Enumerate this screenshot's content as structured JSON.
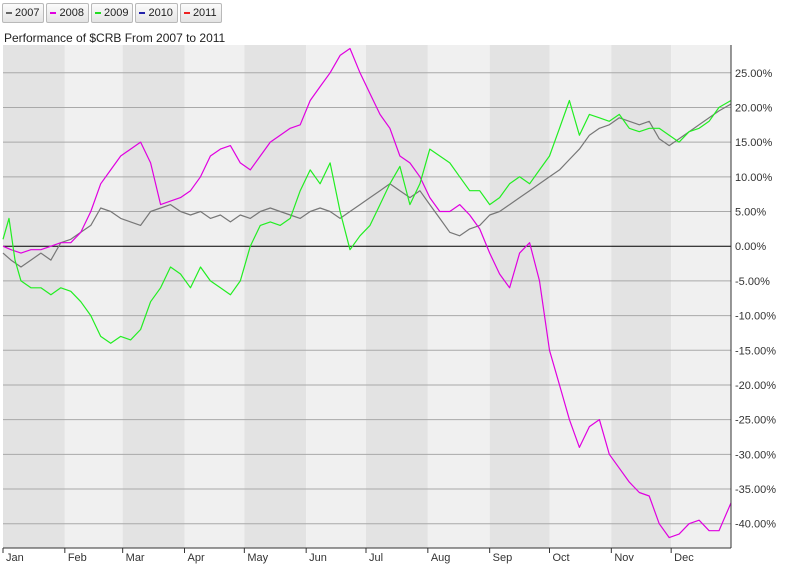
{
  "legend": [
    {
      "label": "2007",
      "color": "#666666"
    },
    {
      "label": "2008",
      "color": "#e000e0"
    },
    {
      "label": "2009",
      "color": "#22dd22"
    },
    {
      "label": "2010",
      "color": "#2222aa"
    },
    {
      "label": "2011",
      "color": "#ee2222"
    }
  ],
  "chart_data": {
    "type": "line",
    "title": "Performance of $CRB From 2007 to 2011",
    "ylabel_suffix": "%",
    "ylim": [
      -43.5,
      29
    ],
    "yticks": [
      25,
      20,
      15,
      10,
      5,
      0,
      -5,
      -10,
      -15,
      -20,
      -25,
      -30,
      -35,
      -40
    ],
    "ytick_labels": [
      "25.00%",
      "20.00%",
      "15.00%",
      "10.00%",
      "5.00%",
      "0.00%",
      "-5.00%",
      "-10.00%",
      "-15.00%",
      "-20.00%",
      "-25.00%",
      "-30.00%",
      "-35.00%",
      "-40.00%"
    ],
    "x_axis": {
      "range": [
        1,
        366
      ],
      "months": [
        "Jan",
        "Feb",
        "Mar",
        "Apr",
        "May",
        "Jun",
        "Jul",
        "Aug",
        "Sep",
        "Oct",
        "Nov",
        "Dec"
      ],
      "month_starts": [
        1,
        32,
        61,
        92,
        122,
        153,
        183,
        214,
        245,
        275,
        306,
        336
      ]
    },
    "series": [
      {
        "name": "2007",
        "color": "#777777",
        "points": [
          [
            1,
            -1
          ],
          [
            5,
            -2
          ],
          [
            10,
            -3
          ],
          [
            15,
            -2
          ],
          [
            20,
            -1
          ],
          [
            25,
            -2
          ],
          [
            30,
            0.5
          ],
          [
            35,
            1
          ],
          [
            40,
            2
          ],
          [
            45,
            3
          ],
          [
            50,
            5.5
          ],
          [
            55,
            5
          ],
          [
            60,
            4
          ],
          [
            65,
            3.5
          ],
          [
            70,
            3
          ],
          [
            75,
            5
          ],
          [
            80,
            5.5
          ],
          [
            85,
            6
          ],
          [
            90,
            5
          ],
          [
            95,
            4.5
          ],
          [
            100,
            5
          ],
          [
            105,
            4
          ],
          [
            110,
            4.5
          ],
          [
            115,
            3.5
          ],
          [
            120,
            4.5
          ],
          [
            125,
            4
          ],
          [
            130,
            5
          ],
          [
            135,
            5.5
          ],
          [
            140,
            5
          ],
          [
            145,
            4.5
          ],
          [
            150,
            4
          ],
          [
            155,
            5
          ],
          [
            160,
            5.5
          ],
          [
            165,
            5
          ],
          [
            170,
            4
          ],
          [
            175,
            5
          ],
          [
            180,
            6
          ],
          [
            185,
            7
          ],
          [
            190,
            8
          ],
          [
            195,
            9
          ],
          [
            200,
            8
          ],
          [
            205,
            7
          ],
          [
            210,
            8
          ],
          [
            215,
            6
          ],
          [
            220,
            4
          ],
          [
            225,
            2
          ],
          [
            230,
            1.5
          ],
          [
            235,
            2.5
          ],
          [
            240,
            3
          ],
          [
            245,
            4.5
          ],
          [
            250,
            5
          ],
          [
            255,
            6
          ],
          [
            260,
            7
          ],
          [
            265,
            8
          ],
          [
            270,
            9
          ],
          [
            275,
            10
          ],
          [
            280,
            11
          ],
          [
            285,
            12.5
          ],
          [
            290,
            14
          ],
          [
            295,
            16
          ],
          [
            300,
            17
          ],
          [
            305,
            17.5
          ],
          [
            310,
            18.5
          ],
          [
            315,
            18
          ],
          [
            320,
            17.5
          ],
          [
            325,
            18
          ],
          [
            330,
            15.5
          ],
          [
            335,
            14.5
          ],
          [
            340,
            15.5
          ],
          [
            345,
            16.5
          ],
          [
            350,
            17.5
          ],
          [
            355,
            18.5
          ],
          [
            360,
            19.5
          ],
          [
            366,
            20.5
          ]
        ]
      },
      {
        "name": "2008",
        "color": "#e000e0",
        "points": [
          [
            1,
            0
          ],
          [
            5,
            -0.5
          ],
          [
            10,
            -1
          ],
          [
            15,
            -0.5
          ],
          [
            20,
            -0.5
          ],
          [
            25,
            0
          ],
          [
            30,
            0.5
          ],
          [
            35,
            0.5
          ],
          [
            40,
            2
          ],
          [
            45,
            5
          ],
          [
            50,
            9
          ],
          [
            55,
            11
          ],
          [
            60,
            13
          ],
          [
            65,
            14
          ],
          [
            70,
            15
          ],
          [
            75,
            12
          ],
          [
            80,
            6
          ],
          [
            85,
            6.5
          ],
          [
            90,
            7
          ],
          [
            95,
            8
          ],
          [
            100,
            10
          ],
          [
            105,
            13
          ],
          [
            110,
            14
          ],
          [
            115,
            14.5
          ],
          [
            120,
            12
          ],
          [
            125,
            11
          ],
          [
            130,
            13
          ],
          [
            135,
            15
          ],
          [
            140,
            16
          ],
          [
            145,
            17
          ],
          [
            150,
            17.5
          ],
          [
            155,
            21
          ],
          [
            160,
            23
          ],
          [
            165,
            25
          ],
          [
            170,
            27.5
          ],
          [
            175,
            28.5
          ],
          [
            180,
            25
          ],
          [
            185,
            22
          ],
          [
            190,
            19
          ],
          [
            195,
            17
          ],
          [
            200,
            13
          ],
          [
            205,
            12
          ],
          [
            210,
            10
          ],
          [
            215,
            7
          ],
          [
            220,
            5
          ],
          [
            225,
            5
          ],
          [
            230,
            6
          ],
          [
            235,
            4.5
          ],
          [
            240,
            2.5
          ],
          [
            245,
            -1
          ],
          [
            250,
            -4
          ],
          [
            255,
            -6
          ],
          [
            260,
            -1
          ],
          [
            265,
            0.5
          ],
          [
            270,
            -5
          ],
          [
            275,
            -15
          ],
          [
            280,
            -20
          ],
          [
            285,
            -25
          ],
          [
            290,
            -29
          ],
          [
            295,
            -26
          ],
          [
            300,
            -25
          ],
          [
            305,
            -30
          ],
          [
            310,
            -32
          ],
          [
            315,
            -34
          ],
          [
            320,
            -35.5
          ],
          [
            325,
            -36
          ],
          [
            330,
            -40
          ],
          [
            335,
            -42
          ],
          [
            340,
            -41.5
          ],
          [
            345,
            -40
          ],
          [
            350,
            -39.5
          ],
          [
            355,
            -41
          ],
          [
            360,
            -41
          ],
          [
            366,
            -37
          ]
        ]
      },
      {
        "name": "2009",
        "color": "#22ee22",
        "points": [
          [
            1,
            1
          ],
          [
            4,
            4
          ],
          [
            7,
            -2
          ],
          [
            10,
            -5
          ],
          [
            15,
            -6
          ],
          [
            20,
            -6
          ],
          [
            25,
            -7
          ],
          [
            30,
            -6
          ],
          [
            35,
            -6.5
          ],
          [
            40,
            -8
          ],
          [
            45,
            -10
          ],
          [
            50,
            -13
          ],
          [
            55,
            -14
          ],
          [
            60,
            -13
          ],
          [
            65,
            -13.5
          ],
          [
            70,
            -12
          ],
          [
            75,
            -8
          ],
          [
            80,
            -6
          ],
          [
            85,
            -3
          ],
          [
            90,
            -4
          ],
          [
            95,
            -6
          ],
          [
            100,
            -3
          ],
          [
            105,
            -5
          ],
          [
            110,
            -6
          ],
          [
            115,
            -7
          ],
          [
            120,
            -5
          ],
          [
            125,
            0
          ],
          [
            130,
            3
          ],
          [
            135,
            3.5
          ],
          [
            140,
            3
          ],
          [
            145,
            4
          ],
          [
            150,
            8
          ],
          [
            155,
            11
          ],
          [
            160,
            9
          ],
          [
            165,
            12
          ],
          [
            170,
            5
          ],
          [
            175,
            -0.5
          ],
          [
            180,
            1.5
          ],
          [
            185,
            3
          ],
          [
            190,
            6
          ],
          [
            195,
            9
          ],
          [
            200,
            11.5
          ],
          [
            205,
            6
          ],
          [
            210,
            9
          ],
          [
            215,
            14
          ],
          [
            220,
            13
          ],
          [
            225,
            12
          ],
          [
            230,
            10
          ],
          [
            235,
            8
          ],
          [
            240,
            8
          ],
          [
            245,
            6
          ],
          [
            250,
            7
          ],
          [
            255,
            9
          ],
          [
            260,
            10
          ],
          [
            265,
            9
          ],
          [
            270,
            11
          ],
          [
            275,
            13
          ],
          [
            280,
            17
          ],
          [
            285,
            21
          ],
          [
            290,
            16
          ],
          [
            295,
            19
          ],
          [
            300,
            18.5
          ],
          [
            305,
            18
          ],
          [
            310,
            19
          ],
          [
            315,
            17
          ],
          [
            320,
            16.5
          ],
          [
            325,
            17
          ],
          [
            330,
            17
          ],
          [
            335,
            16
          ],
          [
            340,
            15
          ],
          [
            345,
            16.5
          ],
          [
            350,
            17
          ],
          [
            355,
            18
          ],
          [
            360,
            20
          ],
          [
            366,
            21
          ]
        ]
      },
      {
        "name": "2010",
        "color": "#2222aa",
        "points": []
      },
      {
        "name": "2011",
        "color": "#ee2222",
        "points": []
      }
    ]
  }
}
